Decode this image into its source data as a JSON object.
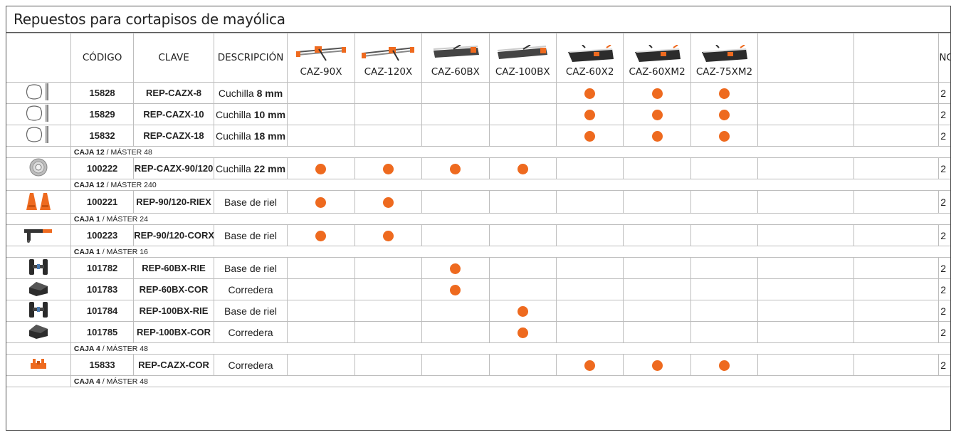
{
  "title": "Repuestos para cortapisos de mayólica",
  "headers": {
    "codigo": "CÓDIGO",
    "clave": "CLAVE",
    "descripcion": "DESCRIPCIÓN",
    "nc": "NC"
  },
  "models": [
    "CAZ-90X",
    "CAZ-120X",
    "CAZ-60BX",
    "CAZ-100BX",
    "CAZ-60X2",
    "CAZ-60XM2",
    "CAZ-75XM2"
  ],
  "rows": [
    {
      "codigo": "15828",
      "clave": "REP-CAZX-8",
      "desc": "Cuchilla",
      "desc_bold": "8 mm",
      "dots": [
        0,
        0,
        0,
        0,
        1,
        1,
        1
      ],
      "nc": "2",
      "icon": "blade-icon"
    },
    {
      "codigo": "15829",
      "clave": "REP-CAZX-10",
      "desc": "Cuchilla",
      "desc_bold": "10 mm",
      "dots": [
        0,
        0,
        0,
        0,
        1,
        1,
        1
      ],
      "nc": "2",
      "icon": "blade-icon"
    },
    {
      "codigo": "15832",
      "clave": "REP-CAZX-18",
      "desc": "Cuchilla",
      "desc_bold": "18 mm",
      "dots": [
        0,
        0,
        0,
        0,
        1,
        1,
        1
      ],
      "nc": "2",
      "icon": "blade-icon"
    },
    {
      "codigo": "100222",
      "clave": "REP-CAZX-90/120",
      "desc": "Cuchilla",
      "desc_bold": "22 mm",
      "dots": [
        1,
        1,
        1,
        1,
        0,
        0,
        0
      ],
      "nc": "2",
      "icon": "wheel-icon"
    },
    {
      "codigo": "100221",
      "clave": "REP-90/120-RIEX",
      "desc": "Base de riel",
      "desc_bold": "",
      "dots": [
        1,
        1,
        0,
        0,
        0,
        0,
        0
      ],
      "nc": "2",
      "icon": "rail-base-icon"
    },
    {
      "codigo": "100223",
      "clave": "REP-90/120-CORX",
      "desc": "Base de riel",
      "desc_bold": "",
      "dots": [
        1,
        1,
        0,
        0,
        0,
        0,
        0
      ],
      "nc": "2",
      "icon": "handle-icon"
    },
    {
      "codigo": "101782",
      "clave": "REP-60BX-RIE",
      "desc": "Base de riel",
      "desc_bold": "",
      "dots": [
        0,
        0,
        1,
        0,
        0,
        0,
        0
      ],
      "nc": "2",
      "icon": "clamp-icon"
    },
    {
      "codigo": "101783",
      "clave": "REP-60BX-COR",
      "desc": "Corredera",
      "desc_bold": "",
      "dots": [
        0,
        0,
        1,
        0,
        0,
        0,
        0
      ],
      "nc": "2",
      "icon": "slider-icon"
    },
    {
      "codigo": "101784",
      "clave": "REP-100BX-RIE",
      "desc": "Base de riel",
      "desc_bold": "",
      "dots": [
        0,
        0,
        0,
        1,
        0,
        0,
        0
      ],
      "nc": "2",
      "icon": "clamp-icon"
    },
    {
      "codigo": "101785",
      "clave": "REP-100BX-COR",
      "desc": "Corredera",
      "desc_bold": "",
      "dots": [
        0,
        0,
        0,
        1,
        0,
        0,
        0
      ],
      "nc": "2",
      "icon": "slider-icon"
    },
    {
      "codigo": "15833",
      "clave": "REP-CAZX-COR",
      "desc": "Corredera",
      "desc_bold": "",
      "dots": [
        0,
        0,
        0,
        0,
        1,
        1,
        1
      ],
      "nc": "2",
      "icon": "orange-slider-icon"
    }
  ],
  "packs": [
    {
      "caja": "CAJA 12",
      "master": "MÁSTER 48"
    },
    {
      "caja": "CAJA 12",
      "master": "MÁSTER 240"
    },
    {
      "caja": "CAJA 1",
      "master": "MÁSTER 24"
    },
    {
      "caja": "CAJA 1",
      "master": "MÁSTER 16"
    },
    {
      "caja": "CAJA 4",
      "master": "MÁSTER 48"
    },
    {
      "caja": "CAJA 4",
      "master": "MÁSTER 48"
    }
  ],
  "colors": {
    "dot": "#ee6a1f",
    "border": "#bdbdbd",
    "frame": "#555555"
  }
}
